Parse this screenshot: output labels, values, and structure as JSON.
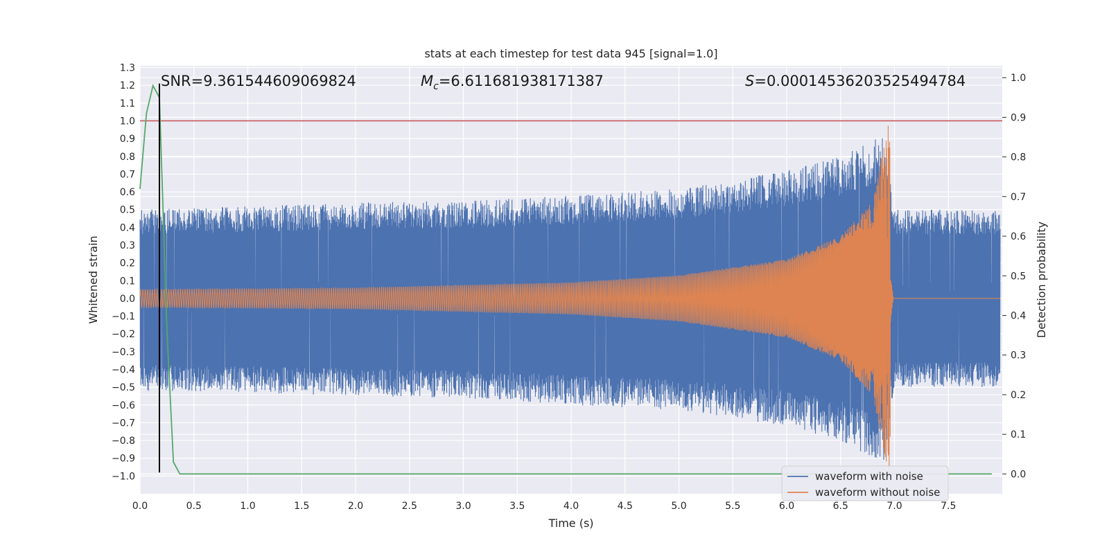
{
  "chart_data": {
    "type": "line",
    "title": "stats at each timestep for test data 945 [signal=1.0]",
    "xlabel": "Time (s)",
    "ylabel": "Whitened strain",
    "y2label": "Detection probability",
    "xlim": [
      0.0,
      8.0
    ],
    "ylim": [
      -1.1,
      1.31
    ],
    "y2lim": [
      -0.05,
      1.03
    ],
    "xticks": [
      "0.0",
      "0.5",
      "1.0",
      "1.5",
      "2.0",
      "2.5",
      "3.0",
      "3.5",
      "4.0",
      "4.5",
      "5.0",
      "5.5",
      "6.0",
      "6.5",
      "7.0",
      "7.5"
    ],
    "yticks": [
      "1.3",
      "1.2",
      "1.1",
      "1.0",
      "0.9",
      "0.8",
      "0.7",
      "0.6",
      "0.5",
      "0.4",
      "0.3",
      "0.2",
      "0.1",
      "0.0",
      "−0.1",
      "−0.2",
      "−0.3",
      "−0.4",
      "−0.5",
      "−0.6",
      "−0.7",
      "−0.8",
      "−0.9",
      "−1.0"
    ],
    "y2ticks": [
      "1.0",
      "0.9",
      "0.8",
      "0.7",
      "0.6",
      "0.5",
      "0.4",
      "0.3",
      "0.2",
      "0.1",
      "0.0"
    ],
    "grid": true,
    "legend_position": "lower-right",
    "annotations": {
      "snr": "SNR=9.361544609069824",
      "mc_symbol": "M",
      "mc_sub": "c",
      "mc_value": "=6.611681938171387",
      "s_symbol": "S",
      "s_value": "=0.00014536203525494784"
    },
    "threshold_line": {
      "axis": "y",
      "value": 1.0,
      "color": "#c44e52"
    },
    "marker_line": {
      "x": 0.18,
      "y_from": -0.98,
      "y_to": 1.21,
      "color": "#000000"
    },
    "series": [
      {
        "name": "waveform with noise",
        "color": "#4c72b0",
        "axis": "left",
        "envelope": [
          {
            "t": 0.0,
            "upper": 0.5,
            "lower": -0.52
          },
          {
            "t": 1.0,
            "upper": 0.52,
            "lower": -0.53
          },
          {
            "t": 2.0,
            "upper": 0.54,
            "lower": -0.55
          },
          {
            "t": 3.0,
            "upper": 0.55,
            "lower": -0.56
          },
          {
            "t": 4.0,
            "upper": 0.58,
            "lower": -0.6
          },
          {
            "t": 5.0,
            "upper": 0.62,
            "lower": -0.63
          },
          {
            "t": 6.0,
            "upper": 0.72,
            "lower": -0.72
          },
          {
            "t": 6.5,
            "upper": 0.8,
            "lower": -0.8
          },
          {
            "t": 6.9,
            "upper": 0.92,
            "lower": -0.94
          },
          {
            "t": 7.0,
            "upper": 0.5,
            "lower": -0.5
          },
          {
            "t": 8.0,
            "upper": 0.5,
            "lower": -0.5
          }
        ]
      },
      {
        "name": "waveform without noise",
        "color": "#dd8452",
        "axis": "left",
        "envelope": [
          {
            "t": 0.0,
            "amp": 0.05
          },
          {
            "t": 2.0,
            "amp": 0.06
          },
          {
            "t": 4.0,
            "amp": 0.09
          },
          {
            "t": 5.0,
            "amp": 0.13
          },
          {
            "t": 6.0,
            "amp": 0.22
          },
          {
            "t": 6.5,
            "amp": 0.35
          },
          {
            "t": 6.8,
            "amp": 0.55
          },
          {
            "t": 6.95,
            "amp": 1.0
          },
          {
            "t": 7.0,
            "amp": 0.0
          },
          {
            "t": 8.0,
            "amp": 0.0
          }
        ]
      },
      {
        "name": "",
        "color": "#55a868",
        "axis": "right",
        "x": [
          0.0,
          0.06,
          0.12,
          0.18,
          0.25,
          0.31,
          0.37,
          0.5,
          1.0,
          2.0,
          4.0,
          6.0,
          7.9
        ],
        "values": [
          0.72,
          0.91,
          0.98,
          0.95,
          0.36,
          0.03,
          0.0,
          0.0,
          0.0,
          0.0,
          0.0,
          0.0,
          0.0
        ]
      }
    ]
  }
}
